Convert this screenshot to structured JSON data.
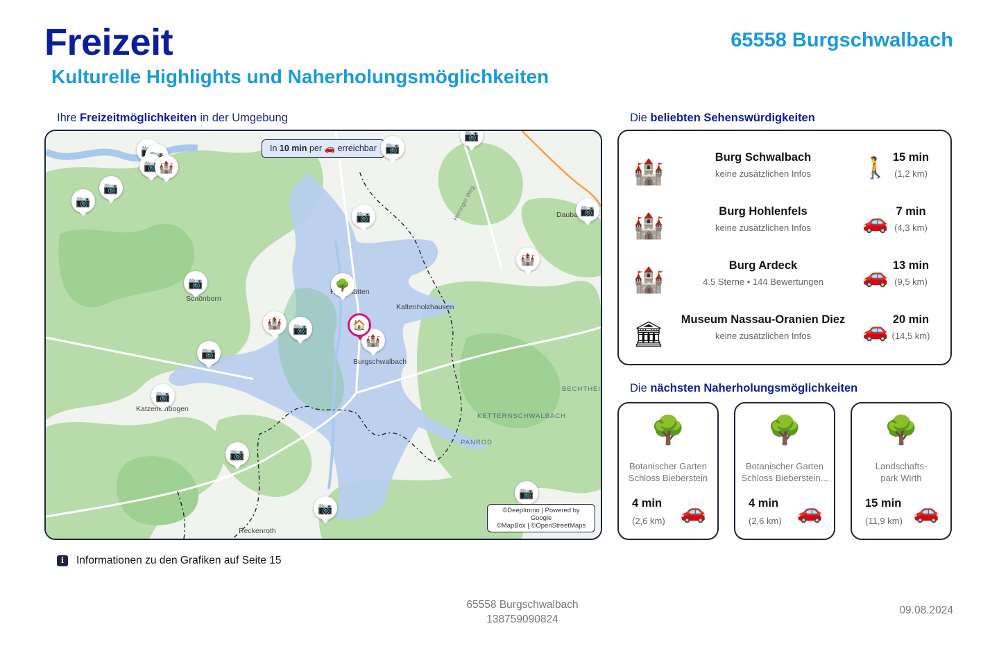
{
  "header": {
    "title": "Freizeit",
    "location": "65558 Burgschwalbach",
    "subtitle": "Kulturelle Highlights und Naherholungsmöglichkeiten"
  },
  "map_section": {
    "label_prefix": "Ihre ",
    "label_bold": "Freizeitmöglichkeiten",
    "label_suffix": " in der Umgebung",
    "reach_badge": {
      "prefix": "In ",
      "time": "10 min",
      "middle": " per ",
      "vehicle_icon": "car-icon",
      "suffix": " erreichbar"
    },
    "copyright_line1": "©DeepImmo | Powered by Google",
    "copyright_line2": "©MapBox | ©OpenStreetMaps",
    "place_labels": {
      "schonborn": "Schönborn",
      "hahnstatten": "Hahnstätten",
      "kaltenholzhausen": "Kaltenholzhausen",
      "burgschwalbach": "Burgschwalbach",
      "katzenelnbogen": "Katzenelnbogen",
      "reckenroth": "Reckenroth",
      "daubach": "Daubach",
      "bechtheim": "BECHTHEIM",
      "ketternschwalbach": "KETTERNSCHWALBACH",
      "panrod": "PANROD",
      "herringer_weg": "Herringer Weg"
    },
    "colors": {
      "forest": "#b7dcaa",
      "forest_dark": "#9fd094",
      "reach_area": "#b7cdee",
      "water": "#a9c8ee",
      "home_ring": "#d6156f",
      "highway": "#f3a14a"
    }
  },
  "sights_section": {
    "label_prefix": "Die ",
    "label_bold": "beliebten Sehenswürdigkeiten",
    "items": [
      {
        "icon": "castle-icon",
        "name": "Burg Schwalbach",
        "info": "keine zusätzlichen Infos",
        "mode_icon": "walking-icon",
        "time": "15 min",
        "distance": "(1,2 km)"
      },
      {
        "icon": "castle-icon",
        "name": "Burg Hohlenfels",
        "info": "keine zusätzlichen Infos",
        "mode_icon": "car-icon",
        "time": "7 min",
        "distance": "(4,3 km)"
      },
      {
        "icon": "castle-icon",
        "name": "Burg Ardeck",
        "info": "4.5 Sterne • 144 Bewertungen",
        "mode_icon": "car-icon",
        "time": "13 min",
        "distance": "(9,5 km)"
      },
      {
        "icon": "museum-icon",
        "name": "Museum Nassau-Oranien Diez",
        "info": "keine zusätzlichen Infos",
        "mode_icon": "car-icon",
        "time": "20 min",
        "distance": "(14,5 km)"
      }
    ]
  },
  "recreation_section": {
    "label_prefix": "Die ",
    "label_bold": "nächsten Naherholungsmöglichkeiten",
    "items": [
      {
        "icon": "tree-icon",
        "name_line1": "Botanischer Garten",
        "name_line2": "Schloss Bieberstein",
        "time": "4 min",
        "distance": "(2,6 km)",
        "mode_icon": "car-icon"
      },
      {
        "icon": "tree-icon",
        "name_line1": "Botanischer Garten",
        "name_line2": "Schloss Bieberstein...",
        "time": "4 min",
        "distance": "(2,6 km)",
        "mode_icon": "car-icon"
      },
      {
        "icon": "tree-icon",
        "name_line1": "Landschafts-",
        "name_line2": "park Wirth",
        "time": "15 min",
        "distance": "(11,9 km)",
        "mode_icon": "car-icon"
      }
    ]
  },
  "info_note": "Informationen zu den Grafiken auf Seite 15",
  "footer": {
    "location": "65558 Burgschwalbach",
    "id": "138759090824",
    "date": "09.08.2024"
  }
}
